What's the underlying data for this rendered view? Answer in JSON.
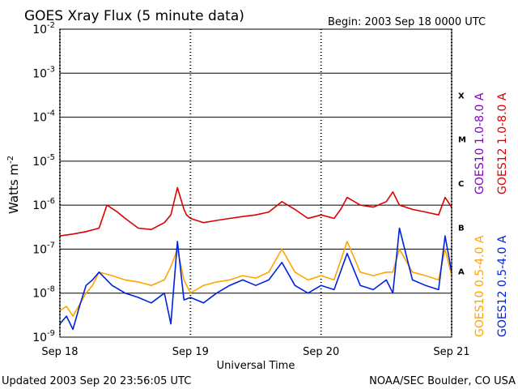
{
  "chart_data": {
    "type": "line",
    "title": "GOES Xray Flux (5 minute data)",
    "begin_label": "Begin:  2003 Sep 18 0000 UTC",
    "xlabel": "Universal Time",
    "ylabel": "Watts m",
    "ylabel_sup": "-2",
    "x_tick_labels": [
      "Sep 18",
      "Sep 19",
      "Sep 20",
      "Sep 21"
    ],
    "xlim_days": [
      0,
      3
    ],
    "y_scale": "log",
    "ylim": [
      1e-09,
      0.01
    ],
    "y_tick_labels": [
      {
        "base": "10",
        "exp": "-9"
      },
      {
        "base": "10",
        "exp": "-8"
      },
      {
        "base": "10",
        "exp": "-7"
      },
      {
        "base": "10",
        "exp": "-6"
      },
      {
        "base": "10",
        "exp": "-5"
      },
      {
        "base": "10",
        "exp": "-4"
      },
      {
        "base": "10",
        "exp": "-3"
      },
      {
        "base": "10",
        "exp": "-2"
      }
    ],
    "flare_classes": [
      "A",
      "B",
      "C",
      "M",
      "X"
    ],
    "footer_left": "Updated 2003 Sep 20 23:56:05 UTC",
    "footer_right": "NOAA/SEC Boulder, CO USA",
    "legend_right": [
      {
        "label": "GOES12 1.0-8.0 A",
        "color": "#dd0000"
      },
      {
        "label": "GOES12 0.5-4.0 A",
        "color": "#0022dd"
      }
    ],
    "legend_left": [
      {
        "label": "GOES10 1.0-8.0 A",
        "color": "#8800cc"
      },
      {
        "label": "GOES10 0.5-4.0 A",
        "color": "#ffa500"
      }
    ],
    "series": [
      {
        "name": "GOES12 1.0-8.0 A",
        "color": "#dd0000",
        "x": [
          0,
          0.1,
          0.2,
          0.3,
          0.36,
          0.44,
          0.5,
          0.6,
          0.7,
          0.8,
          0.85,
          0.9,
          0.95,
          0.97,
          1.0,
          1.1,
          1.2,
          1.3,
          1.4,
          1.5,
          1.6,
          1.7,
          1.8,
          1.9,
          2.0,
          2.1,
          2.15,
          2.2,
          2.3,
          2.4,
          2.5,
          2.55,
          2.6,
          2.7,
          2.8,
          2.9,
          2.95,
          3.0
        ],
        "y": [
          2e-07,
          2.2e-07,
          2.5e-07,
          3e-07,
          1e-06,
          7e-07,
          5e-07,
          3e-07,
          2.8e-07,
          4e-07,
          6e-07,
          2.5e-06,
          8e-07,
          6e-07,
          5e-07,
          4e-07,
          4.5e-07,
          5e-07,
          5.5e-07,
          6e-07,
          7e-07,
          1.2e-06,
          8e-07,
          5e-07,
          6e-07,
          5e-07,
          8e-07,
          1.5e-06,
          1e-06,
          9e-07,
          1.2e-06,
          2e-06,
          1e-06,
          8e-07,
          7e-07,
          6e-07,
          1.5e-06,
          9e-07
        ]
      },
      {
        "name": "GOES10 0.5-4.0 A",
        "color": "#ffa500",
        "x": [
          0,
          0.05,
          0.1,
          0.2,
          0.25,
          0.3,
          0.4,
          0.5,
          0.6,
          0.7,
          0.8,
          0.85,
          0.9,
          0.95,
          1.0,
          1.1,
          1.2,
          1.3,
          1.4,
          1.5,
          1.6,
          1.7,
          1.8,
          1.9,
          2.0,
          2.1,
          2.2,
          2.3,
          2.4,
          2.5,
          2.55,
          2.6,
          2.7,
          2.8,
          2.9,
          2.95,
          3.0
        ],
        "y": [
          4e-09,
          5e-09,
          3e-09,
          1e-08,
          1.5e-08,
          3e-08,
          2.5e-08,
          2e-08,
          1.8e-08,
          1.5e-08,
          2e-08,
          4e-08,
          1e-07,
          2e-08,
          1e-08,
          1.5e-08,
          1.8e-08,
          2e-08,
          2.5e-08,
          2.2e-08,
          3e-08,
          1e-07,
          3e-08,
          2e-08,
          2.5e-08,
          2e-08,
          1.5e-07,
          3e-08,
          2.5e-08,
          3e-08,
          3e-08,
          1e-07,
          3e-08,
          2.5e-08,
          2e-08,
          1e-07,
          2.5e-08
        ]
      },
      {
        "name": "GOES12 0.5-4.0 A",
        "color": "#0022dd",
        "x": [
          0,
          0.05,
          0.1,
          0.15,
          0.2,
          0.25,
          0.3,
          0.4,
          0.5,
          0.6,
          0.7,
          0.8,
          0.85,
          0.9,
          0.95,
          1.0,
          1.1,
          1.2,
          1.3,
          1.4,
          1.5,
          1.6,
          1.7,
          1.8,
          1.9,
          2.0,
          2.1,
          2.2,
          2.3,
          2.4,
          2.5,
          2.55,
          2.6,
          2.7,
          2.8,
          2.9,
          2.95,
          3.0
        ],
        "y": [
          2e-09,
          3e-09,
          1.5e-09,
          5e-09,
          1.5e-08,
          2e-08,
          3e-08,
          1.5e-08,
          1e-08,
          8e-09,
          6e-09,
          1e-08,
          2e-09,
          1.5e-07,
          7e-09,
          8e-09,
          6e-09,
          1e-08,
          1.5e-08,
          2e-08,
          1.5e-08,
          2e-08,
          5e-08,
          1.5e-08,
          1e-08,
          1.5e-08,
          1.2e-08,
          8e-08,
          1.5e-08,
          1.2e-08,
          2e-08,
          1e-08,
          3e-07,
          2e-08,
          1.5e-08,
          1.2e-08,
          2e-07,
          3e-08
        ]
      }
    ]
  }
}
